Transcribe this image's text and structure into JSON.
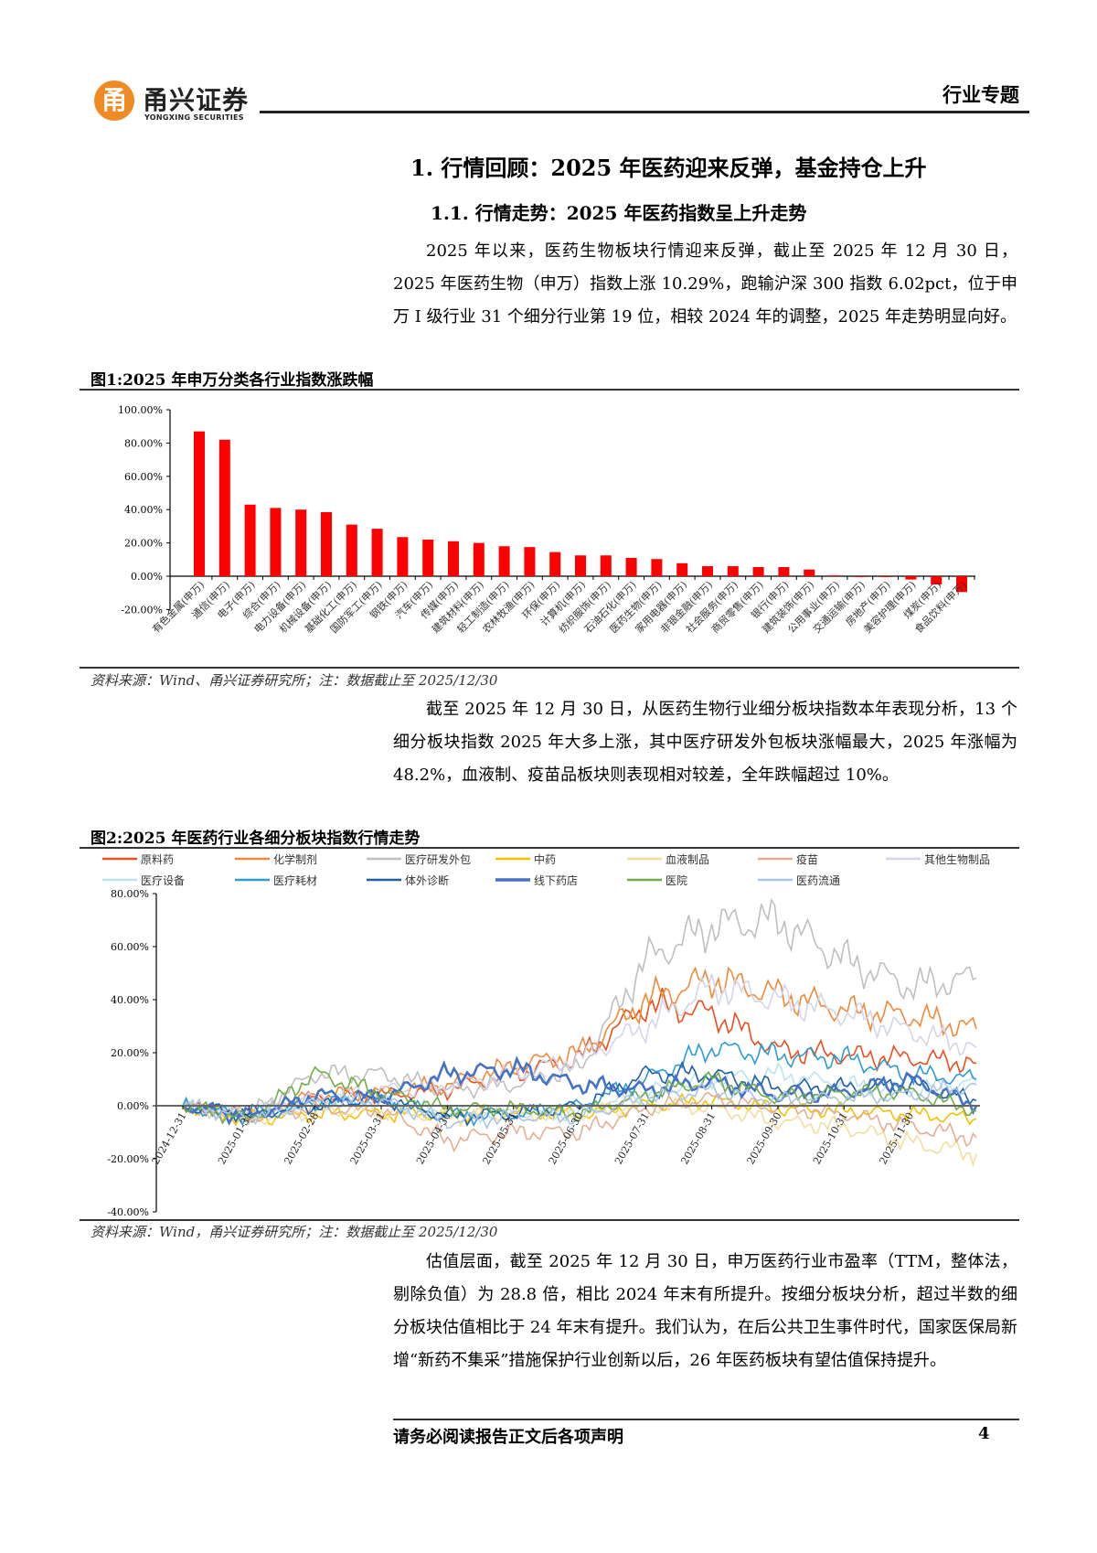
{
  "header": {
    "logo_cn": "甬兴证券",
    "logo_en": "YONGXING SECURITIES",
    "logo_mark": "甬",
    "doc_type": "行业专题"
  },
  "section": {
    "h1": "1. 行情回顾：2025 年医药迎来反弹，基金持仓上升",
    "h2": "1.1. 行情走势：2025 年医药指数呈上升走势",
    "para1": "2025 年以来，医药生物板块行情迎来反弹，截止至 2025 年 12 月 30 日，2025 年医药生物（申万）指数上涨 10.29%，跑输沪深 300 指数 6.02pct，位于申万 I 级行业 31 个细分行业第 19 位，相较 2024 年的调整，2025 年走势明显向好。",
    "fig1_caption": "图1:2025 年申万分类各行业指数涨跌幅",
    "fig1_source": "资料来源：Wind、甬兴证券研究所；注：数据截止至 2025/12/30",
    "para2": "截至 2025 年 12 月 30 日，从医药生物行业细分板块指数本年表现分析，13 个细分板块指数 2025 年大多上涨，其中医疗研发外包板块涨幅最大，2025 年涨幅为 48.2%，血液制、疫苗品板块则表现相对较差，全年跌幅超过 10%。",
    "fig2_caption": "图2:2025 年医药行业各细分板块指数行情走势",
    "fig2_source": "资料来源：Wind，甬兴证券研究所；注：数据截止至 2025/12/30",
    "para3": "估值层面，截至 2025 年 12 月 30 日，申万医药行业市盈率（TTM，整体法，剔除负值）为 28.8 倍，相比 2024 年末有所提升。按细分板块分析，超过半数的细分板块估值相比于 24 年末有提升。我们认为，在后公共卫生事件时代，国家医保局新增“新药不集采”措施保护行业创新以后，26 年医药板块有望估值保持提升。"
  },
  "footer": {
    "disclaimer": "请务必阅读报告正文后各项声明",
    "page": "4"
  },
  "chart_data": [
    {
      "type": "bar",
      "title": "2025 年申万分类各行业指数涨跌幅",
      "ylim": [
        -20,
        100
      ],
      "yticks": [
        "100.00%",
        "80.00%",
        "60.00%",
        "40.00%",
        "20.00%",
        "0.00%",
        "-20.00%"
      ],
      "ytick_values": [
        100,
        80,
        60,
        40,
        20,
        0,
        -20
      ],
      "color": "#FF0000",
      "categories": [
        "有色金属(申万)",
        "通信(申万)",
        "电子(申万)",
        "综合(申万)",
        "电力设备(申万)",
        "机械设备(申万)",
        "基础化工(申万)",
        "国防军工(申万)",
        "钢铁(申万)",
        "汽车(申万)",
        "传媒(申万)",
        "建筑材料(申万)",
        "轻工制造(申万)",
        "农林牧渔(申万)",
        "环保(申万)",
        "计算机(申万)",
        "纺织服饰(申万)",
        "石油石化(申万)",
        "医药生物(申万)",
        "家用电器(申万)",
        "非银金融(申万)",
        "社会服务(申万)",
        "商贸零售(申万)",
        "银行(申万)",
        "建筑装饰(申万)",
        "公用事业(申万)",
        "交通运输(申万)",
        "房地产(申万)",
        "美容护理(申万)",
        "煤炭(申万)",
        "食品饮料(申万)"
      ],
      "values": [
        87,
        82,
        43,
        41,
        40,
        38.5,
        31,
        28.5,
        23.5,
        22,
        21,
        20,
        18,
        17.5,
        14.5,
        12.5,
        12.5,
        11,
        10.29,
        7.8,
        6,
        6,
        5.5,
        5.5,
        4,
        0.5,
        -0.5,
        -0.5,
        -2,
        -5,
        -9.5
      ]
    },
    {
      "type": "line",
      "title": "2025 年医药行业各细分板块指数行情走势",
      "ylim": [
        -40,
        80
      ],
      "yticks": [
        "80.00%",
        "60.00%",
        "40.00%",
        "20.00%",
        "0.00%",
        "-20.00%",
        "-40.00%"
      ],
      "ytick_values": [
        80,
        60,
        40,
        20,
        0,
        -20,
        -40
      ],
      "x": [
        "2024-12-31",
        "2025-01-31",
        "2025-02-28",
        "2025-03-31",
        "2025-04-30",
        "2025-05-31",
        "2025-06-30",
        "2025-07-31",
        "2025-08-31",
        "2025-09-30",
        "2025-10-31",
        "2025-11-30",
        "2025-12-30"
      ],
      "xtick_labels": [
        "2024-12-31",
        "2025-01-31",
        "2025-02-28",
        "2025-03-31",
        "2025-04-30",
        "2025-05-31",
        "2025-06-30",
        "2025-07-31",
        "2025-08-31",
        "2025-09-30",
        "2025-10-31",
        "2025-11-30"
      ],
      "legend": "top",
      "series": [
        {
          "name": "原料药",
          "color": "#E8501E",
          "values": [
            0,
            -4,
            3,
            4,
            6,
            12,
            18,
            38,
            35,
            21,
            19,
            18,
            16
          ]
        },
        {
          "name": "化学制剂",
          "color": "#F0893A",
          "values": [
            0,
            -4,
            4,
            5,
            8,
            15,
            20,
            40,
            48,
            42,
            36,
            34,
            29
          ]
        },
        {
          "name": "医疗研发外包",
          "color": "#BFBFBF",
          "values": [
            0,
            -3,
            12,
            12,
            6,
            8,
            14,
            55,
            68,
            70,
            55,
            45,
            48.2
          ]
        },
        {
          "name": "中药",
          "color": "#F5C000",
          "values": [
            0,
            -5,
            -3,
            -3,
            -3,
            -2,
            -3,
            0,
            2,
            -1,
            -2,
            -3,
            -5
          ]
        },
        {
          "name": "血液制品",
          "color": "#F3DD9E",
          "values": [
            0,
            -5,
            -2,
            -2,
            -4,
            -3,
            -3,
            0,
            -1,
            -6,
            -8,
            -14,
            -18
          ]
        },
        {
          "name": "疫苗",
          "color": "#E5AE94",
          "values": [
            0,
            -4,
            -1,
            -2,
            -13,
            -10,
            -10,
            -1,
            3,
            -1,
            -3,
            -8,
            -12
          ]
        },
        {
          "name": "其他生物制品",
          "color": "#D3D5EA",
          "values": [
            0,
            -3,
            3,
            6,
            7,
            12,
            18,
            30,
            45,
            40,
            35,
            28,
            22
          ]
        },
        {
          "name": "医疗设备",
          "color": "#BDE3EE",
          "values": [
            0,
            -4,
            2,
            2,
            -3,
            -3,
            -3,
            5,
            10,
            12,
            8,
            6,
            9
          ]
        },
        {
          "name": "医疗耗材",
          "color": "#2E9AD6",
          "values": [
            0,
            -4,
            1,
            2,
            -4,
            -3,
            0,
            10,
            22,
            19,
            18,
            12,
            10
          ]
        },
        {
          "name": "体外诊断",
          "color": "#1F5FA8",
          "values": [
            0,
            -3,
            0,
            3,
            -4,
            -3,
            0,
            12,
            12,
            7,
            7,
            8,
            2
          ]
        },
        {
          "name": "线下药店",
          "color": "#4472C4",
          "values": [
            0,
            -4,
            4,
            3,
            12,
            14,
            8,
            6,
            9,
            4,
            5,
            10,
            0
          ]
        },
        {
          "name": "医院",
          "color": "#70AD47",
          "values": [
            0,
            -5,
            12,
            5,
            -1,
            -1,
            -3,
            4,
            10,
            3,
            5,
            5,
            -2
          ]
        },
        {
          "name": "医药流通",
          "color": "#A9C4E5",
          "values": [
            0,
            -4,
            1,
            2,
            -6,
            -4,
            -4,
            3,
            6,
            2,
            3,
            4,
            8
          ]
        }
      ]
    }
  ]
}
